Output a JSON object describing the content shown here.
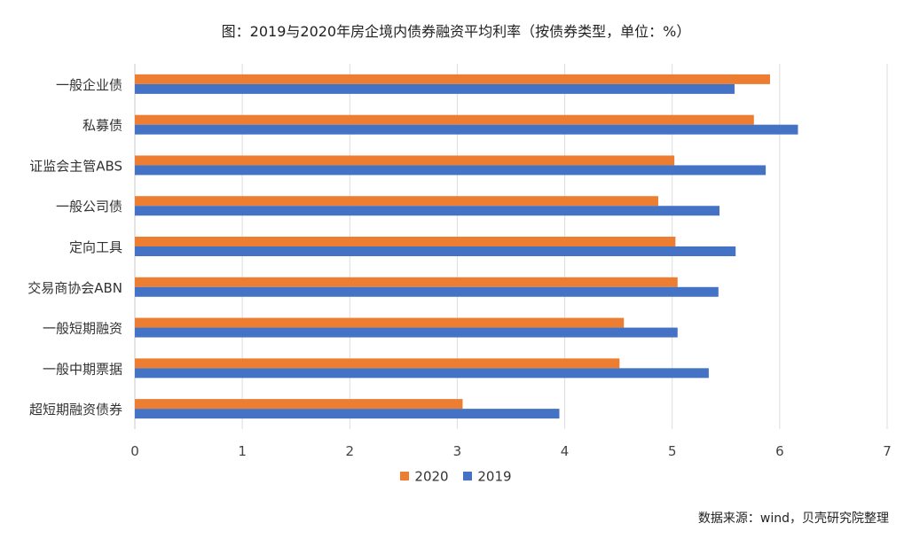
{
  "chart_data": {
    "type": "bar",
    "orientation": "horizontal",
    "title": "图：2019与2020年房企境内债券融资平均利率（按债券类型，单位：%）",
    "categories": [
      "一般企业债",
      "私募债",
      "证监会主管ABS",
      "一般公司债",
      "定向工具",
      "交易商协会ABN",
      "一般短期融资",
      "一般中期票据",
      "超短期融资债券"
    ],
    "series": [
      {
        "name": "2020",
        "color": "#ED7D31",
        "values": [
          5.91,
          5.76,
          5.02,
          4.87,
          5.03,
          5.05,
          4.55,
          4.51,
          3.05
        ]
      },
      {
        "name": "2019",
        "color": "#4472C4",
        "values": [
          5.58,
          6.17,
          5.87,
          5.44,
          5.59,
          5.43,
          5.05,
          5.34,
          3.95
        ]
      }
    ],
    "xlim": [
      0,
      7
    ],
    "xticks": [
      "0",
      "1",
      "2",
      "3",
      "4",
      "5",
      "6",
      "7"
    ],
    "grid": true,
    "legend": [
      "2020",
      "2019"
    ],
    "legend_position": "bottom"
  },
  "source_note": "数据来源：wind，贝壳研究院整理"
}
